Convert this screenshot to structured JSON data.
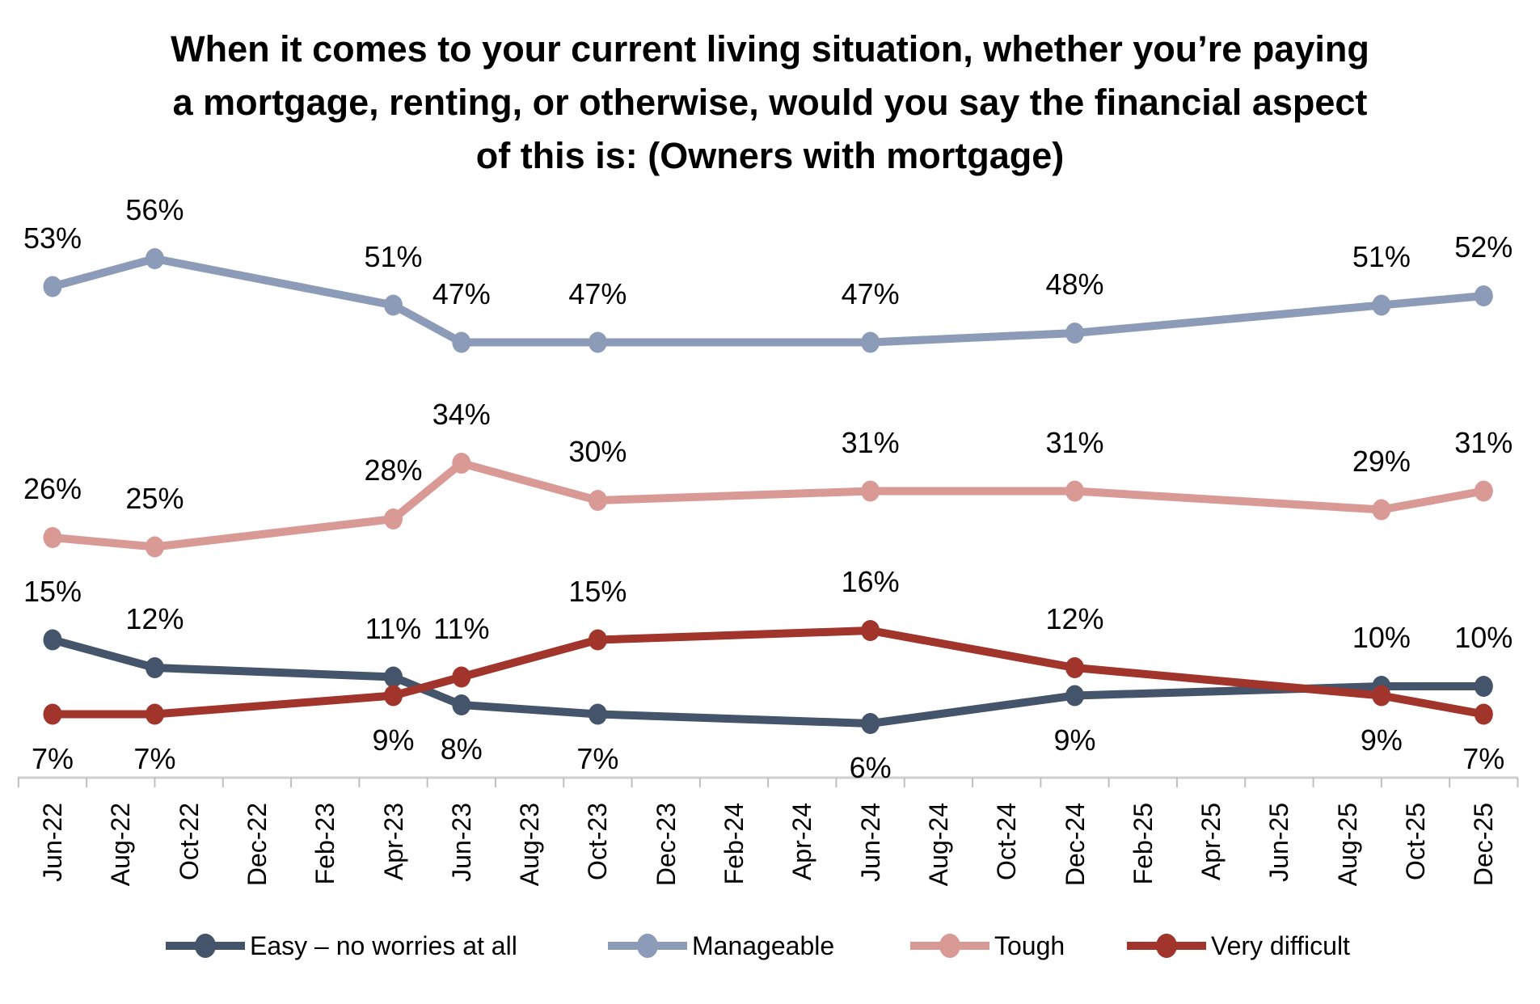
{
  "title": {
    "line1": "When it comes to your current living situation, whether you’re paying",
    "line2": "a mortgage, renting, or otherwise, would you say the financial aspect",
    "line3": "of this is: (Owners with mortgage)"
  },
  "chart_data": {
    "type": "line",
    "title": "When it comes to your current living situation, whether you’re paying a mortgage, renting, or otherwise, would you say the financial aspect of this is: (Owners with mortgage)",
    "unit": "%",
    "ylim": [
      0,
      60
    ],
    "grid": false,
    "y_axis_visible": false,
    "legend_position": "bottom",
    "x_tick_labels": [
      "Jun-22",
      "Aug-22",
      "Oct-22",
      "Dec-22",
      "Feb-23",
      "Apr-23",
      "Jun-23",
      "Aug-23",
      "Oct-23",
      "Dec-23",
      "Feb-24",
      "Apr-24",
      "Jun-24",
      "Aug-24",
      "Oct-24",
      "Dec-24",
      "Feb-25",
      "Apr-25",
      "Jun-25",
      "Aug-25",
      "Oct-25",
      "Dec-25"
    ],
    "point_months": [
      "Jun-22",
      "Sep-22",
      "Apr-23",
      "Jun-23",
      "Oct-23",
      "Jun-24",
      "Dec-24",
      "Sep-25",
      "Dec-25"
    ],
    "point_month_offsets": [
      0,
      3,
      10,
      12,
      16,
      24,
      30,
      39,
      42
    ],
    "series": [
      {
        "name": "Easy – no worries at all",
        "color": "#44546A",
        "values": [
          15,
          12,
          11,
          8,
          7,
          6,
          9,
          10,
          10
        ],
        "labels": [
          "15%",
          "12%",
          "11%",
          "8%",
          "7%",
          "6%",
          "9%",
          "10%",
          "10%"
        ],
        "label_pos": [
          "above",
          "above",
          "above",
          "below",
          "below",
          "below",
          "below",
          "above",
          "above"
        ]
      },
      {
        "name": "Manageable",
        "color": "#8C9CB8",
        "values": [
          53,
          56,
          51,
          47,
          47,
          47,
          48,
          51,
          52
        ],
        "labels": [
          "53%",
          "56%",
          "51%",
          "47%",
          "47%",
          "47%",
          "48%",
          "51%",
          "52%"
        ],
        "label_pos": [
          "above",
          "above",
          "above",
          "above",
          "above",
          "above",
          "above",
          "above",
          "above"
        ]
      },
      {
        "name": "Tough",
        "color": "#D99A96",
        "values": [
          26,
          25,
          28,
          34,
          30,
          31,
          31,
          29,
          31
        ],
        "labels": [
          "26%",
          "25%",
          "28%",
          "34%",
          "30%",
          "31%",
          "31%",
          "29%",
          "31%"
        ],
        "label_pos": [
          "above",
          "above",
          "above",
          "above",
          "above",
          "above",
          "above",
          "above",
          "above"
        ]
      },
      {
        "name": "Very difficult",
        "color": "#A1342B",
        "values": [
          7,
          7,
          9,
          11,
          15,
          16,
          12,
          9,
          7
        ],
        "labels": [
          "7%",
          "7%",
          "9%",
          "11%",
          "15%",
          "16%",
          "12%",
          "9%",
          "7%"
        ],
        "label_pos": [
          "below",
          "below",
          "below",
          "above",
          "above",
          "above",
          "above",
          "below",
          "below"
        ]
      }
    ],
    "draw_order": [
      1,
      2,
      0,
      3
    ],
    "axis_line_color": "#CFCFCF",
    "tick_color": "#BFBFBF",
    "text_color": "#000000"
  }
}
